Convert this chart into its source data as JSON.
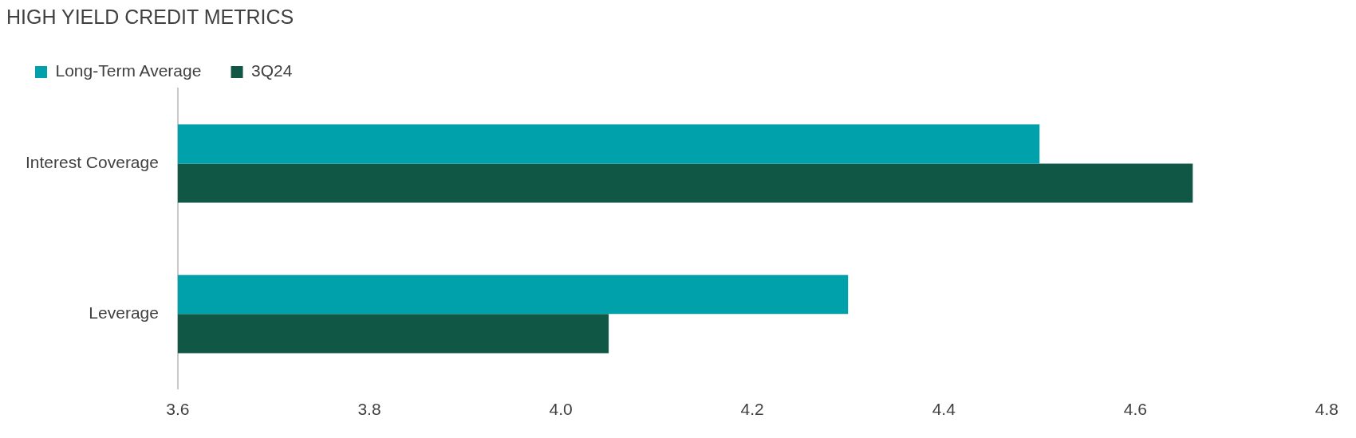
{
  "chart_data": {
    "type": "bar",
    "orientation": "horizontal",
    "title": "HIGH YIELD CREDIT METRICS",
    "categories": [
      "Interest Coverage",
      "Leverage"
    ],
    "series": [
      {
        "name": "Long-Term Average",
        "color": "#00a1ab",
        "values": [
          4.5,
          4.3
        ]
      },
      {
        "name": "3Q24",
        "color": "#105746",
        "values": [
          4.66,
          4.05
        ]
      }
    ],
    "xlim": [
      3.6,
      4.8
    ],
    "xticks": [
      3.6,
      3.8,
      {
        "value": 4,
        "label": "4.0"
      },
      4.2,
      4.4,
      4.6,
      4.8
    ],
    "grid": false,
    "legend": "top left"
  }
}
